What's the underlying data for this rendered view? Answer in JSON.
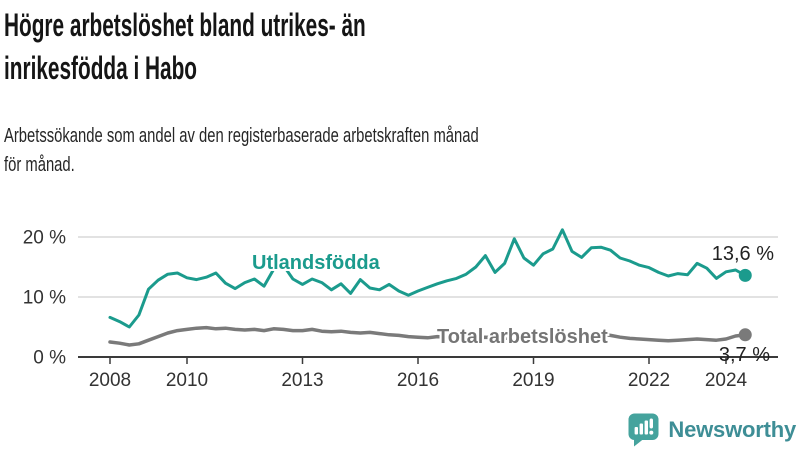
{
  "header": {
    "title": "Högre arbetslöshet bland utrikes- än inrikesfödda i Habo",
    "title_lines": [
      "Högre arbetslöshet bland utrikes- än",
      "inrikesfödda i Habo"
    ],
    "subtitle": "Arbetssökande som andel av den registerbaserade arbetskraften månad för månad.",
    "subtitle_lines": [
      "Arbetssökande som andel av den registerbaserade arbetskraften månad",
      "för månad."
    ]
  },
  "chart_data": {
    "type": "line",
    "x_unit": "year",
    "x_start": 2008.0,
    "x_step_years": 0.25,
    "x_range": [
      2008.0,
      2024.5
    ],
    "y_range": [
      0,
      22
    ],
    "grid": true,
    "legend": "inline-labels",
    "x_ticks": [
      {
        "value": 2008,
        "label": "2008"
      },
      {
        "value": 2010,
        "label": "2010"
      },
      {
        "value": 2013,
        "label": "2013"
      },
      {
        "value": 2016,
        "label": "2016"
      },
      {
        "value": 2019,
        "label": "2019"
      },
      {
        "value": 2022,
        "label": "2022"
      },
      {
        "value": 2024,
        "label": "2024"
      }
    ],
    "y_ticks": [
      {
        "value": 0,
        "label": "0 %"
      },
      {
        "value": 10,
        "label": "10 %"
      },
      {
        "value": 20,
        "label": "20 %"
      }
    ],
    "series": [
      {
        "id": "utlandsfodda",
        "name": "Utlandsfödda",
        "color": "#1b9b8d",
        "end_label": "13,6 %",
        "end_value": 13.6,
        "values": [
          6.6,
          5.9,
          5.0,
          7.0,
          11.3,
          12.8,
          13.8,
          14.0,
          13.2,
          12.9,
          13.3,
          14.0,
          12.3,
          11.4,
          12.4,
          13.0,
          11.8,
          14.6,
          15.3,
          13.0,
          12.1,
          13.0,
          12.4,
          11.2,
          12.2,
          10.6,
          12.9,
          11.5,
          11.2,
          12.1,
          11.0,
          10.3,
          11.0,
          11.6,
          12.2,
          12.7,
          13.1,
          13.8,
          15.0,
          16.9,
          14.1,
          15.6,
          19.7,
          16.5,
          15.3,
          17.2,
          18.0,
          21.2,
          17.6,
          16.6,
          18.2,
          18.3,
          17.8,
          16.5,
          16.0,
          15.3,
          14.9,
          14.1,
          13.5,
          13.9,
          13.7,
          15.6,
          14.8,
          13.1,
          14.2,
          14.5,
          13.6
        ]
      },
      {
        "id": "total",
        "name": "Total arbetslöshet",
        "color": "#7a7a7a",
        "end_label": "3,7 %",
        "end_value": 3.7,
        "values": [
          2.5,
          2.3,
          2.0,
          2.2,
          2.8,
          3.4,
          4.0,
          4.4,
          4.6,
          4.8,
          4.9,
          4.7,
          4.8,
          4.6,
          4.5,
          4.6,
          4.4,
          4.7,
          4.6,
          4.4,
          4.4,
          4.6,
          4.3,
          4.2,
          4.3,
          4.1,
          4.0,
          4.1,
          3.9,
          3.7,
          3.6,
          3.4,
          3.3,
          3.2,
          3.4,
          3.3,
          3.4,
          3.3,
          3.2,
          3.3,
          3.2,
          3.1,
          3.2,
          3.3,
          3.2,
          3.4,
          3.5,
          3.6,
          3.5,
          3.9,
          4.0,
          3.8,
          3.6,
          3.3,
          3.1,
          3.0,
          2.9,
          2.8,
          2.7,
          2.8,
          2.9,
          3.0,
          2.9,
          2.8,
          3.0,
          3.5,
          3.7
        ]
      }
    ]
  },
  "footer": {
    "logo_text": "Newsworthy",
    "logo_icon": "bar-chart-speech-bubble-icon"
  },
  "colors": {
    "accent_teal": "#1b9b8d",
    "line_gray": "#7a7a7a",
    "grid": "#d9d9d9",
    "axis": "#3a3a3a",
    "logo_icon": "#45a39d",
    "logo_text": "#3e8e96"
  }
}
